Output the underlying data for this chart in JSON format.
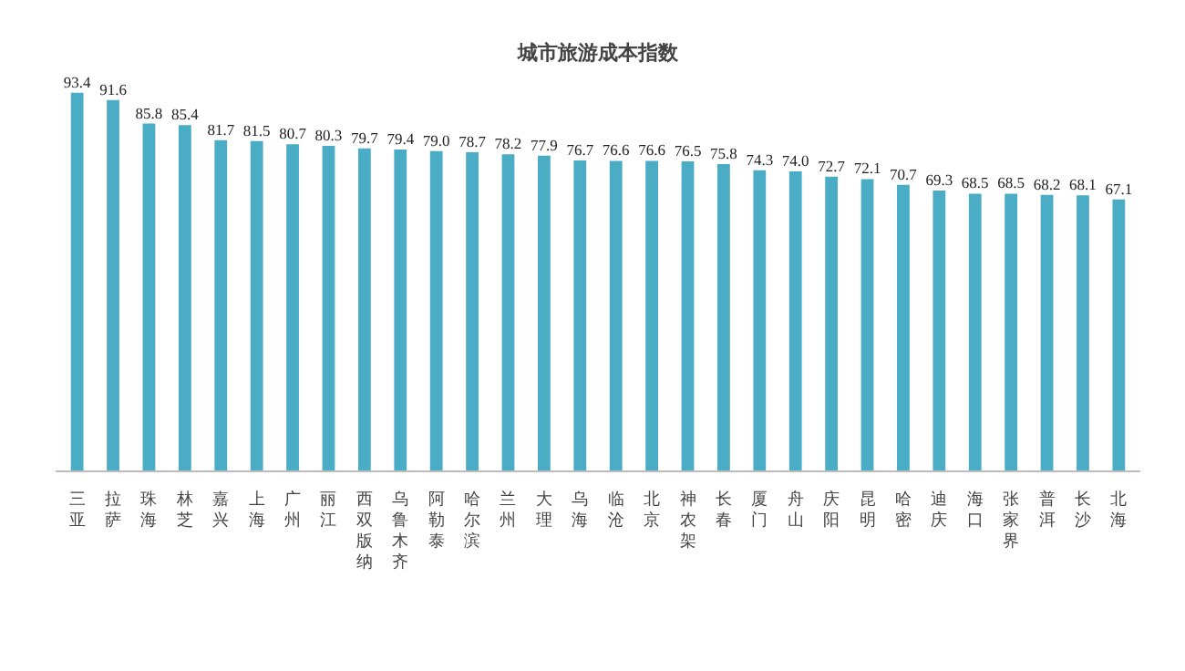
{
  "chart_data": {
    "type": "bar",
    "title": "城市旅游成本指数",
    "categories": [
      "三亚",
      "拉萨",
      "珠海",
      "林芝",
      "嘉兴",
      "上海",
      "广州",
      "丽江",
      "西双版纳",
      "乌鲁木齐",
      "阿勒泰",
      "哈尔滨",
      "兰州",
      "大理",
      "乌海",
      "临沧",
      "北京",
      "神农架",
      "长春",
      "厦门",
      "舟山",
      "庆阳",
      "昆明",
      "哈密",
      "迪庆",
      "海口",
      "张家界",
      "普洱",
      "长沙",
      "北海"
    ],
    "values": [
      93.4,
      91.6,
      85.8,
      85.4,
      81.7,
      81.5,
      80.7,
      80.3,
      79.7,
      79.4,
      79.0,
      78.7,
      78.2,
      77.9,
      76.7,
      76.6,
      76.6,
      76.5,
      75.8,
      74.3,
      74.0,
      72.7,
      72.1,
      70.7,
      69.3,
      68.5,
      68.5,
      68.2,
      68.1,
      67.1
    ],
    "value_labels": [
      "93.4",
      "91.6",
      "85.8",
      "85.4",
      "81.7",
      "81.5",
      "80.7",
      "80.3",
      "79.7",
      "79.4",
      "79.0",
      "78.7",
      "78.2",
      "77.9",
      "76.7",
      "76.6",
      "76.6",
      "76.5",
      "75.8",
      "74.3",
      "74.0",
      "72.7",
      "72.1",
      "70.7",
      "69.3",
      "68.5",
      "68.5",
      "68.2",
      "68.1",
      "67.1"
    ],
    "color": "#4bacc6",
    "grid": false
  }
}
